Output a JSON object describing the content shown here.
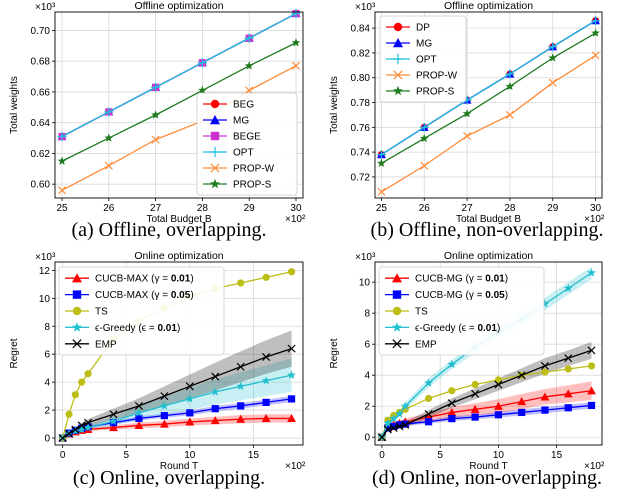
{
  "chart_data": [
    {
      "type": "line",
      "title": "Offline optimization",
      "xlabel": "Total Budget B",
      "ylabel": "Total weights",
      "x_multiplier": "×10²",
      "y_multiplier": "×10³",
      "x": [
        25,
        26,
        27,
        28,
        29,
        30
      ],
      "xlim": [
        24.85,
        30.15
      ],
      "ylim": [
        0.591,
        0.712
      ],
      "xticks": [
        "25",
        "26",
        "27",
        "28",
        "29",
        "30"
      ],
      "yticks": [
        "0.60",
        "0.62",
        "0.64",
        "0.66",
        "0.68",
        "0.70"
      ],
      "legend_position": "lower-right",
      "caption": "(a) Offline, overlapping.",
      "series": [
        {
          "name": "BEG",
          "color": "#ff0000",
          "marker": "circle",
          "values": [
            0.631,
            0.647,
            0.663,
            0.679,
            0.695,
            0.711
          ]
        },
        {
          "name": "MG",
          "color": "#0000ff",
          "marker": "triangle",
          "values": [
            0.631,
            0.647,
            0.663,
            0.679,
            0.695,
            0.711
          ]
        },
        {
          "name": "BEGE",
          "color": "#cc33cc",
          "marker": "square",
          "values": [
            0.631,
            0.647,
            0.663,
            0.679,
            0.695,
            0.711
          ]
        },
        {
          "name": "OPT",
          "color": "#1fbfdf",
          "marker": "plus",
          "values": [
            0.631,
            0.647,
            0.663,
            0.679,
            0.695,
            0.711
          ]
        },
        {
          "name": "PROP-W",
          "color": "#ff8c3a",
          "marker": "x",
          "values": [
            0.596,
            0.612,
            0.629,
            0.641,
            0.661,
            0.677
          ]
        },
        {
          "name": "PROP-S",
          "color": "#1e7b1e",
          "marker": "star",
          "values": [
            0.615,
            0.63,
            0.645,
            0.661,
            0.677,
            0.692
          ]
        }
      ]
    },
    {
      "type": "line",
      "title": "Offline optimization",
      "xlabel": "Total Budget B",
      "ylabel": "Total weights",
      "x_multiplier": "×10²",
      "y_multiplier": "×10³",
      "x": [
        25,
        26,
        27,
        28,
        29,
        30
      ],
      "xlim": [
        24.85,
        30.15
      ],
      "ylim": [
        0.703,
        0.853
      ],
      "xticks": [
        "25",
        "26",
        "27",
        "28",
        "29",
        "30"
      ],
      "yticks": [
        "0.72",
        "0.74",
        "0.76",
        "0.78",
        "0.80",
        "0.82",
        "0.84"
      ],
      "legend_position": "upper-left",
      "caption": "(b) Offline, non-overlapping.",
      "series": [
        {
          "name": "DP",
          "color": "#ff0000",
          "marker": "circle",
          "values": [
            0.738,
            0.76,
            0.782,
            0.803,
            0.825,
            0.846
          ]
        },
        {
          "name": "MG",
          "color": "#0000ff",
          "marker": "triangle",
          "values": [
            0.738,
            0.76,
            0.782,
            0.803,
            0.825,
            0.846
          ]
        },
        {
          "name": "OPT",
          "color": "#1fbfdf",
          "marker": "plus",
          "values": [
            0.738,
            0.76,
            0.782,
            0.803,
            0.825,
            0.846
          ]
        },
        {
          "name": "PROP-W",
          "color": "#ff8c3a",
          "marker": "x",
          "values": [
            0.708,
            0.729,
            0.753,
            0.77,
            0.796,
            0.818
          ]
        },
        {
          "name": "PROP-S",
          "color": "#1e7b1e",
          "marker": "star",
          "values": [
            0.731,
            0.751,
            0.771,
            0.793,
            0.816,
            0.836
          ]
        }
      ]
    },
    {
      "type": "line",
      "title": "Online optimization",
      "xlabel": "Round T",
      "ylabel": "Regret",
      "x_multiplier": "×10²",
      "y_multiplier": "×10³",
      "x": [
        0,
        0.5,
        1,
        1.5,
        2,
        4,
        6,
        8,
        10,
        12,
        14,
        16,
        18
      ],
      "xlim": [
        -0.6,
        18.9
      ],
      "ylim": [
        -0.5,
        12.6
      ],
      "xticks": [
        "0",
        "5",
        "10",
        "15"
      ],
      "yticks": [
        "0",
        "2",
        "4",
        "6",
        "8",
        "10",
        "12"
      ],
      "legend_position": "upper-left",
      "caption": "(c) Online, overlapping.",
      "series": [
        {
          "name": "CUCB-MAX (γ = 0.01)",
          "color": "#ff0000",
          "marker": "triangle",
          "values": [
            0,
            0.3,
            0.45,
            0.55,
            0.62,
            0.75,
            0.9,
            1.0,
            1.15,
            1.25,
            1.35,
            1.4,
            1.4
          ],
          "band": [
            0,
            0.05,
            0.08,
            0.1,
            0.12,
            0.15,
            0.2,
            0.22,
            0.25,
            0.27,
            0.3,
            0.3,
            0.3
          ]
        },
        {
          "name": "CUCB-MAX (γ = 0.05)",
          "color": "#0000ff",
          "marker": "square",
          "values": [
            0,
            0.35,
            0.55,
            0.7,
            0.8,
            1.1,
            1.4,
            1.6,
            1.8,
            2.1,
            2.3,
            2.55,
            2.8
          ],
          "band": [
            0,
            0.05,
            0.08,
            0.1,
            0.1,
            0.12,
            0.15,
            0.15,
            0.18,
            0.2,
            0.2,
            0.2,
            0.22
          ]
        },
        {
          "name": "TS",
          "color": "#bdbd18",
          "marker": "circle",
          "values": [
            0,
            1.7,
            3.1,
            4.0,
            4.6,
            7.1,
            8.4,
            9.3,
            10.1,
            10.7,
            11.1,
            11.5,
            11.9
          ]
        },
        {
          "name": "ϵ-Greedy (ϵ = 0.01)",
          "color": "#22bfcf",
          "marker": "star",
          "values": [
            0,
            0.3,
            0.5,
            0.6,
            0.75,
            1.2,
            1.8,
            2.3,
            2.8,
            3.3,
            3.7,
            4.1,
            4.5
          ],
          "band": [
            0,
            0.05,
            0.1,
            0.15,
            0.2,
            0.3,
            0.5,
            0.6,
            0.8,
            0.9,
            1.0,
            1.1,
            1.2
          ]
        },
        {
          "name": "EMP",
          "color": "#000000",
          "marker": "x",
          "values": [
            0,
            0.3,
            0.6,
            0.9,
            1.1,
            1.7,
            2.3,
            3.0,
            3.7,
            4.4,
            5.1,
            5.8,
            6.4
          ],
          "band": [
            0,
            0.05,
            0.1,
            0.2,
            0.25,
            0.4,
            0.55,
            0.7,
            0.85,
            1.0,
            1.1,
            1.2,
            1.3
          ]
        }
      ]
    },
    {
      "type": "line",
      "title": "Online optimization",
      "xlabel": "Round T",
      "ylabel": "Regret",
      "x_multiplier": "×10²",
      "y_multiplier": "×10³",
      "x": [
        0,
        0.5,
        1,
        1.5,
        2,
        4,
        6,
        8,
        10,
        12,
        14,
        16,
        18
      ],
      "xlim": [
        -0.6,
        18.9
      ],
      "ylim": [
        -0.5,
        11.3
      ],
      "xticks": [
        "0",
        "5",
        "10",
        "15"
      ],
      "yticks": [
        "0",
        "2",
        "4",
        "6",
        "8",
        "10"
      ],
      "legend_position": "upper-left",
      "caption": "(d) Online, non-overlapping.",
      "series": [
        {
          "name": "CUCB-MG (γ = 0.01)",
          "color": "#ff0000",
          "marker": "triangle",
          "values": [
            0,
            0.6,
            0.8,
            0.9,
            1.0,
            1.3,
            1.6,
            1.8,
            2.0,
            2.3,
            2.6,
            2.8,
            3.0
          ],
          "band": [
            0,
            0.1,
            0.15,
            0.15,
            0.2,
            0.25,
            0.35,
            0.4,
            0.45,
            0.5,
            0.5,
            0.55,
            0.6
          ]
        },
        {
          "name": "CUCB-MG (γ = 0.05)",
          "color": "#0000ff",
          "marker": "square",
          "values": [
            0,
            0.6,
            0.7,
            0.8,
            0.85,
            1.0,
            1.2,
            1.3,
            1.45,
            1.6,
            1.75,
            1.9,
            2.05
          ],
          "band": [
            0,
            0.05,
            0.08,
            0.1,
            0.1,
            0.12,
            0.15,
            0.15,
            0.18,
            0.2,
            0.2,
            0.2,
            0.2
          ]
        },
        {
          "name": "TS",
          "color": "#bdbd18",
          "marker": "circle",
          "values": [
            0,
            1.1,
            1.4,
            1.6,
            1.8,
            2.5,
            3.0,
            3.4,
            3.7,
            4.0,
            4.2,
            4.4,
            4.6
          ]
        },
        {
          "name": "ϵ-Greedy (ϵ = 0.01)",
          "color": "#22bfcf",
          "marker": "star",
          "values": [
            0,
            0.9,
            1.2,
            1.5,
            2.0,
            3.5,
            4.7,
            5.8,
            6.8,
            7.6,
            8.6,
            9.6,
            10.6
          ],
          "band": [
            0,
            0.1,
            0.15,
            0.2,
            0.25,
            0.3,
            0.3,
            0.35,
            0.35,
            0.4,
            0.4,
            0.4,
            0.4
          ]
        },
        {
          "name": "EMP",
          "color": "#000000",
          "marker": "x",
          "values": [
            0,
            0.5,
            0.6,
            0.7,
            0.8,
            1.5,
            2.2,
            2.8,
            3.4,
            4.0,
            4.6,
            5.1,
            5.6
          ],
          "band": [
            0,
            0.1,
            0.1,
            0.15,
            0.2,
            0.25,
            0.3,
            0.35,
            0.4,
            0.45,
            0.5,
            0.5,
            0.55
          ]
        }
      ]
    }
  ]
}
